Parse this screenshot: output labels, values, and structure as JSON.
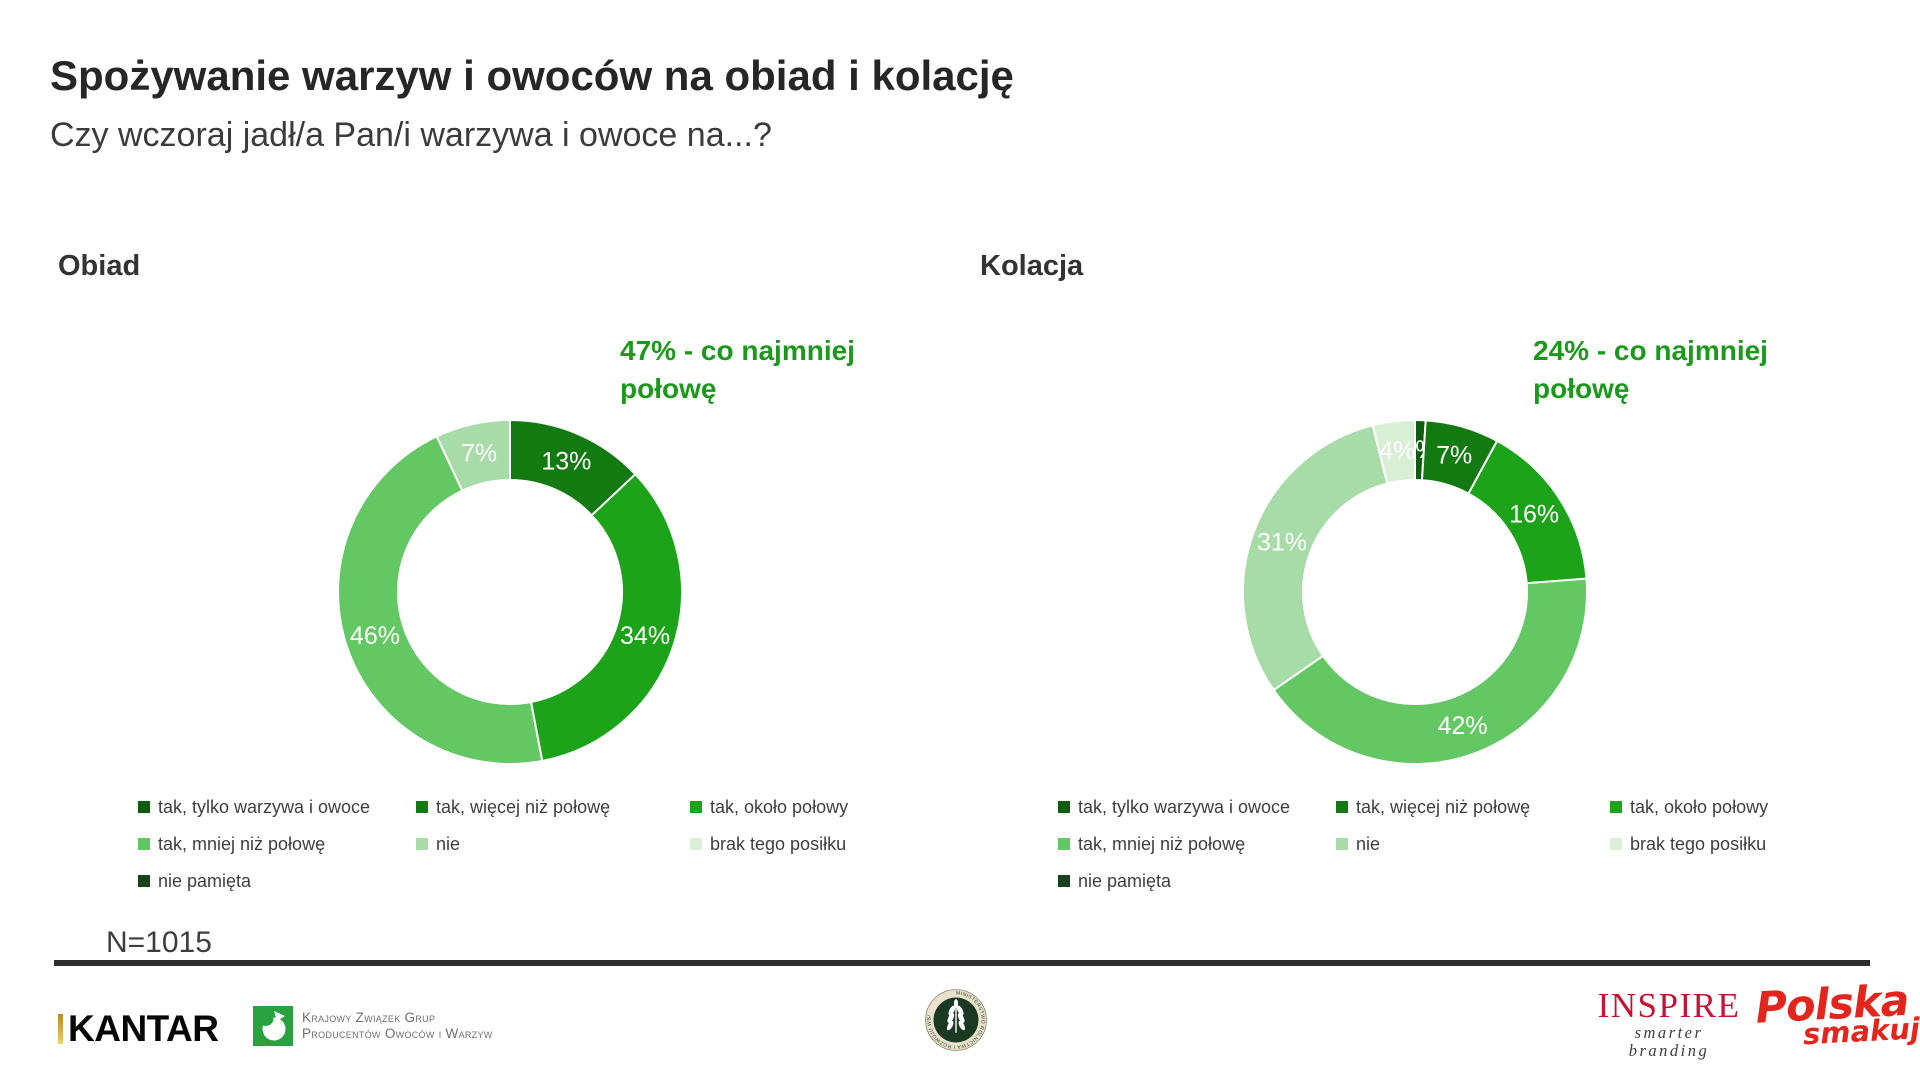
{
  "page": {
    "title": "Spożywanie warzyw i owoców na obiad i kolację",
    "subtitle": "Czy wczoraj jadł/a Pan/i warzywa i owoce na...?",
    "sample_size": "N=1015"
  },
  "palette": {
    "annotation_green": "#1a991a",
    "slice_label_color": "#ffffff",
    "divider_color": "#2e2e2e"
  },
  "chart_data": [
    {
      "type": "pie",
      "title": "Obiad",
      "annotation": "47% - co najmniej połowę",
      "donut_hole": 0.65,
      "start_angle_deg": 0,
      "direction": "clockwise",
      "legend_position": "bottom",
      "categories": [
        "tak, tylko warzywa i owoce",
        "tak, więcej niż połowę",
        "tak, około połowy",
        "tak, mniej niż połowę",
        "nie",
        "brak tego posiłku",
        "nie pamięta"
      ],
      "values": [
        0,
        13,
        34,
        46,
        7,
        0,
        0
      ],
      "labels": [
        "",
        "13%",
        "34%",
        "46%",
        "7%",
        "",
        ""
      ],
      "colors": [
        "#0b5c0c",
        "#127a10",
        "#1ca31a",
        "#63c763",
        "#a7dba7",
        "#d8efd6",
        "#17411d"
      ]
    },
    {
      "type": "pie",
      "title": "Kolacja",
      "annotation": "24% - co najmniej połowę",
      "donut_hole": 0.65,
      "start_angle_deg": 0,
      "direction": "clockwise",
      "legend_position": "bottom",
      "categories": [
        "tak, tylko warzywa i owoce",
        "tak, więcej niż połowę",
        "tak, około połowy",
        "tak, mniej niż połowę",
        "nie",
        "brak tego posiłku",
        "nie pamięta"
      ],
      "values": [
        1,
        7,
        16,
        42,
        31,
        4,
        0
      ],
      "labels": [
        "1%",
        "7%",
        "16%",
        "42%",
        "31%",
        "4%",
        ""
      ],
      "colors": [
        "#0b5c0c",
        "#127a10",
        "#1ca31a",
        "#63c763",
        "#a7dba7",
        "#d8efd6",
        "#17411d"
      ]
    }
  ],
  "footer": {
    "kantar": "KANTAR",
    "kzgpow_line1": "Krajowy Związek Grup",
    "kzgpow_line2": "Producentów Owoców i Warzyw",
    "ministry_seal": "MINISTERSTWO ROLNICTWA I ROZWOJU WSI",
    "inspire": "INSPIRE",
    "inspire_tagline": "smarter branding",
    "polska_line1": "Polska",
    "polska_line2": "smakuje"
  }
}
